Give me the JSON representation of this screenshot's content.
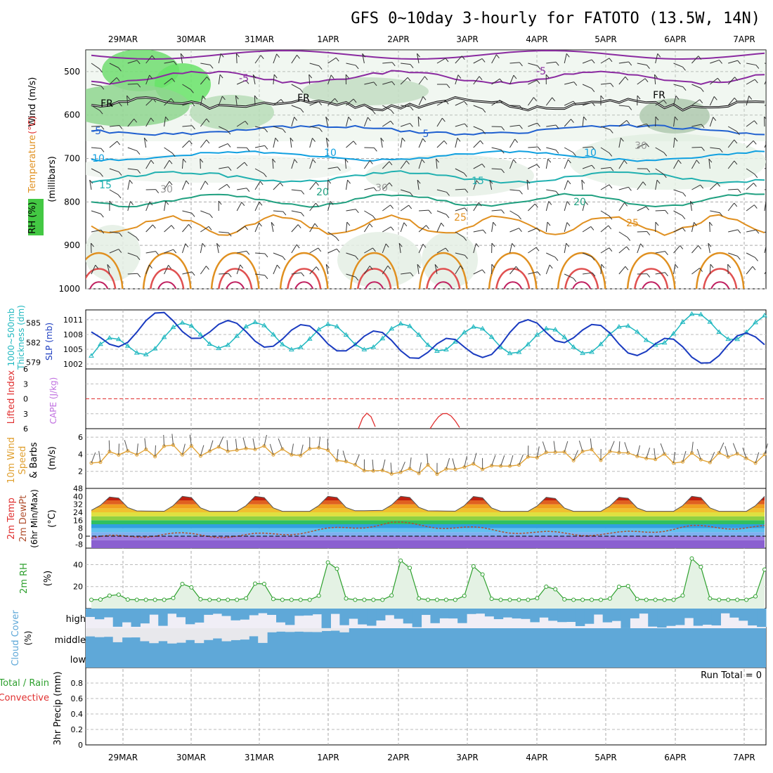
{
  "title": "GFS 0~10day 3-hourly for FATOTO (13.5W, 14N)",
  "dates": [
    "29MAR",
    "30MAR",
    "31MAR",
    "1APR",
    "2APR",
    "3APR",
    "4APR",
    "5APR",
    "6APR",
    "7APR"
  ],
  "colors": {
    "temp_contour_cold": "#2060d0",
    "temp_contour_mild": "#10a0e0",
    "temp_contour_warm": "#20b0b0",
    "temp_contour_hot": "#e09020",
    "freezing": "#000000",
    "rh_band": "#43c843",
    "slp_line": "#1a3bc0",
    "thickness_line": "#20b8c0",
    "lifted_index": "#e03030",
    "cape": "#c070e0",
    "wind_speed": "#e0a030",
    "rh2m": "#2ea02e",
    "cloud": "#5fa8d8",
    "precip_total": "#2ea02e",
    "precip_conv": "#e03030"
  },
  "panel_labels": {
    "upper_wind": "Wind (m/s)",
    "upper_temp": "Temperature (°C)",
    "upper_rh": "RH (%)",
    "upper_units": "(millibars)",
    "thickness": "1000~500mb Thickness (dm)",
    "slp": "SLP (mb)",
    "lifted": "Lifted Index",
    "cape": "CAPE (J/kg)",
    "wind10": "10m Wind Speed & Barbs",
    "wind10_units": "(m/s)",
    "temp2m": "2m Temp",
    "dewpt2m": "2m DewPt",
    "temp2m_sub": "(6hr Min/Max)",
    "temp2m_units": "(°C)",
    "rh2m": "2m RH",
    "rh2m_units": "(%)",
    "cloud": "Cloud Cover",
    "cloud_units": "(%)",
    "precip_total": "Total / Rain",
    "precip_conv": "Convective",
    "precip_units": "3hr Precip (mm)",
    "run_total": "Run Total = 0"
  },
  "pressure_ticks": [
    "500",
    "600",
    "700",
    "800",
    "900",
    "1000"
  ],
  "contour_labels": [
    "-5",
    "FR",
    "5",
    "10",
    "15",
    "20",
    "25",
    "30"
  ],
  "thickness_ticks": [
    "585",
    "582",
    "579"
  ],
  "slp_ticks": [
    "1011",
    "1008",
    "1005",
    "1002"
  ],
  "lifted_ticks": [
    "-6",
    "-3",
    "0",
    "3",
    "6"
  ],
  "wind10_ticks": [
    "6",
    "4",
    "2"
  ],
  "temp2m_ticks": [
    "48",
    "40",
    "32",
    "24",
    "16",
    "8",
    "0",
    "-8"
  ],
  "rh2m_ticks": [
    "40",
    "20"
  ],
  "cloud_ticks": [
    "high",
    "middle",
    "low"
  ],
  "precip_ticks": [
    "0.8",
    "0.6",
    "0.4",
    "0.2",
    "0"
  ],
  "chart_data": [
    {
      "type": "line",
      "title": "GFS 0~10day 3-hourly for FATOTO (13.5W, 14N)",
      "xlabel": "",
      "ylabel": "1000~500mb Thickness (dm) / SLP (mb)",
      "x": [
        "29MAR",
        "30MAR",
        "31MAR",
        "1APR",
        "2APR",
        "3APR",
        "4APR",
        "5APR",
        "6APR",
        "7APR"
      ],
      "series": [
        {
          "name": "1000~500mb Thickness (dm)",
          "values": [
            580.0,
            583.0,
            583.2,
            582.8,
            583.0,
            582.5,
            582.2,
            582.4,
            584.5,
            584.3
          ]
        },
        {
          "name": "SLP (mb)",
          "values": [
            1006.5,
            1010.5,
            1008.0,
            1007.5,
            1006.0,
            1004.5,
            1009.5,
            1007.0,
            1004.0,
            1006.5
          ]
        }
      ],
      "ylim_thickness": [
        578,
        587
      ],
      "ylim_slp": [
        1001,
        1013
      ]
    },
    {
      "type": "line",
      "title": "",
      "ylabel": "10m Wind Speed (m/s)",
      "x": [
        "29MAR",
        "30MAR",
        "31MAR",
        "1APR",
        "2APR",
        "3APR",
        "4APR",
        "5APR",
        "6APR",
        "7APR"
      ],
      "series": [
        {
          "name": "Speed",
          "values": [
            3.5,
            4.5,
            4.2,
            4.5,
            1.8,
            2.5,
            3.8,
            4.0,
            3.5,
            3.5
          ]
        }
      ],
      "ylim": [
        0,
        7
      ]
    },
    {
      "type": "area",
      "title": "",
      "ylabel": "2m Temp (°C)",
      "x": [
        "29MAR",
        "30MAR",
        "31MAR",
        "1APR",
        "2APR",
        "3APR",
        "4APR",
        "5APR",
        "6APR",
        "7APR"
      ],
      "series": [
        {
          "name": "2m Temp max",
          "values": [
            40,
            41,
            41,
            41,
            41,
            41,
            40,
            40,
            41,
            41
          ]
        },
        {
          "name": "2m Temp min",
          "values": [
            26,
            25,
            25,
            25,
            26,
            25,
            25,
            25,
            25,
            25
          ]
        },
        {
          "name": "2m DewPt",
          "values": [
            -2,
            2,
            0,
            5,
            13,
            8,
            3,
            2,
            9,
            9
          ]
        }
      ],
      "ylim": [
        -12,
        48
      ]
    },
    {
      "type": "area",
      "title": "",
      "ylabel": "2m RH (%)",
      "x": [
        "29MAR",
        "30MAR",
        "31MAR",
        "1APR",
        "2APR",
        "3APR",
        "4APR",
        "5APR",
        "6APR",
        "7APR"
      ],
      "series": [
        {
          "name": "2m RH",
          "values": [
            8,
            26,
            20,
            47,
            50,
            46,
            22,
            20,
            52,
            40
          ]
        }
      ],
      "ylim": [
        0,
        55
      ]
    },
    {
      "type": "bar",
      "title": "",
      "ylabel": "3hr Precip (mm)",
      "x": [
        "29MAR",
        "30MAR",
        "31MAR",
        "1APR",
        "2APR",
        "3APR",
        "4APR",
        "5APR",
        "6APR",
        "7APR"
      ],
      "series": [
        {
          "name": "Total / Rain",
          "values": [
            0,
            0,
            0,
            0,
            0,
            0,
            0,
            0,
            0,
            0
          ]
        }
      ],
      "ylim": [
        0,
        1.0
      ],
      "run_total": 0
    }
  ]
}
